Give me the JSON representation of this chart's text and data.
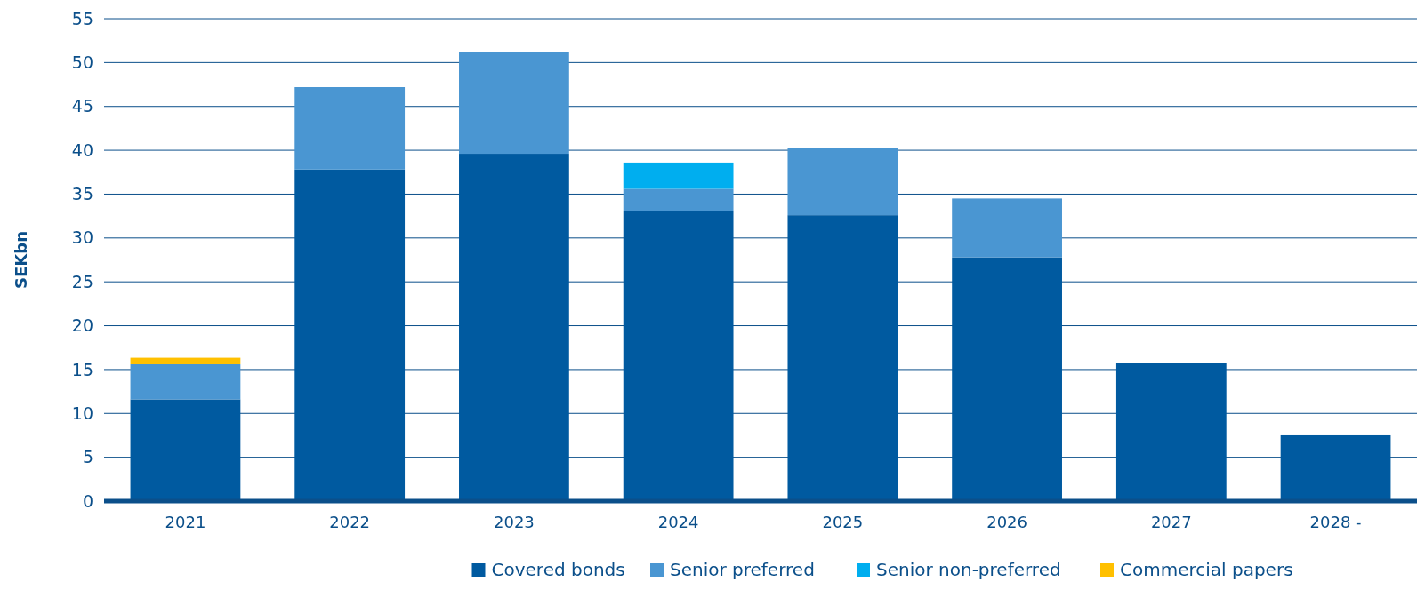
{
  "chart_data": {
    "type": "bar",
    "ylabel": "SEKbn",
    "categories": [
      "2021",
      "2022",
      "2023",
      "2024",
      "2025",
      "2026",
      "2027",
      "2028 -"
    ],
    "stacked": true,
    "ylim": [
      0,
      55
    ],
    "yticks": [
      0,
      5,
      10,
      15,
      20,
      25,
      30,
      35,
      40,
      45,
      50,
      55
    ],
    "grid": "y",
    "legend": "bottom",
    "series": [
      {
        "name": "Covered bonds",
        "color": "#005aa0",
        "values": [
          11.6,
          37.8,
          39.6,
          33.1,
          32.6,
          27.8,
          15.8,
          7.6
        ]
      },
      {
        "name": "Senior preferred",
        "color": "#4a96d2",
        "values": [
          4.0,
          9.4,
          11.6,
          2.5,
          7.7,
          6.7,
          null,
          null
        ]
      },
      {
        "name": "Senior non-preferred",
        "color": "#00aeef",
        "values": [
          null,
          null,
          null,
          3.0,
          null,
          null,
          null,
          null
        ]
      },
      {
        "name": "Commercial papers",
        "color": "#ffc000",
        "values": [
          0.75,
          null,
          null,
          null,
          null,
          null,
          null,
          null
        ]
      }
    ]
  }
}
